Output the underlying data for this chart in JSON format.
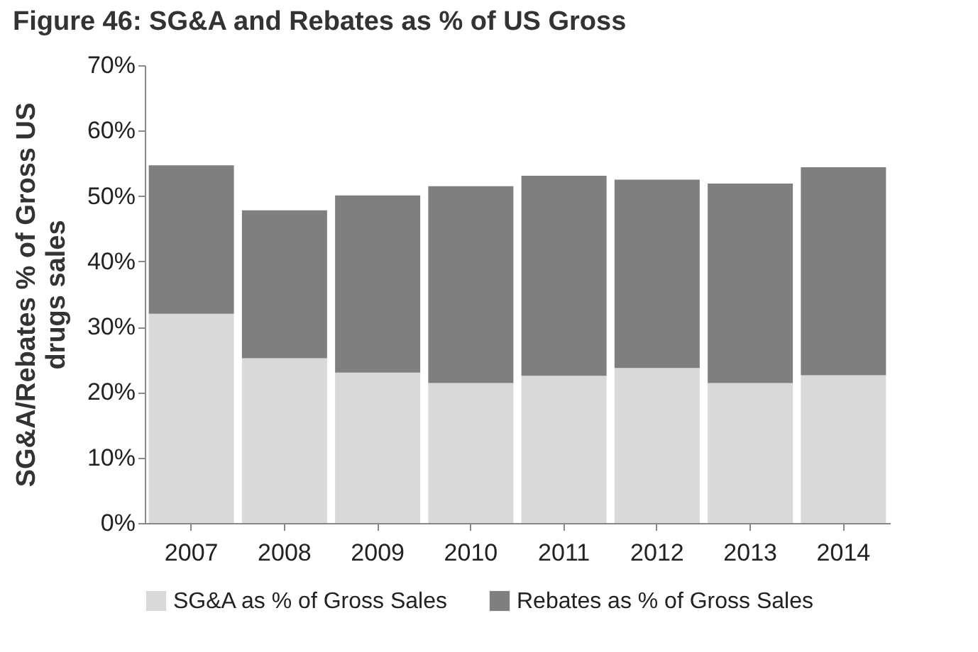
{
  "chart_data": {
    "type": "bar",
    "title": "Figure 46: SG&A and Rebates as % of US Gross",
    "ylabel": "SG&A/Rebates  % of Gross US drugs sales",
    "categories": [
      "2007",
      "2008",
      "2009",
      "2010",
      "2011",
      "2012",
      "2013",
      "2014"
    ],
    "stacked": true,
    "series": [
      {
        "name": "SG&A as % of Gross Sales",
        "color": "#d9d9d9",
        "values": [
          32.0,
          25.2,
          23.0,
          21.4,
          22.5,
          23.7,
          21.4,
          22.6
        ]
      },
      {
        "name": "Rebates as % of Gross Sales",
        "color": "#7f7f7f",
        "values": [
          22.7,
          22.6,
          27.1,
          30.1,
          30.6,
          28.8,
          30.5,
          31.8
        ]
      }
    ],
    "ylim": [
      0,
      70
    ],
    "yticks": [
      {
        "value": 0,
        "label": "0%"
      },
      {
        "value": 10,
        "label": "10%"
      },
      {
        "value": 20,
        "label": "20%"
      },
      {
        "value": 30,
        "label": "30%"
      },
      {
        "value": 40,
        "label": "40%"
      },
      {
        "value": 50,
        "label": "50%"
      },
      {
        "value": 60,
        "label": "60%"
      },
      {
        "value": 70,
        "label": "70%"
      }
    ],
    "grid": false,
    "legend": "bottom"
  }
}
